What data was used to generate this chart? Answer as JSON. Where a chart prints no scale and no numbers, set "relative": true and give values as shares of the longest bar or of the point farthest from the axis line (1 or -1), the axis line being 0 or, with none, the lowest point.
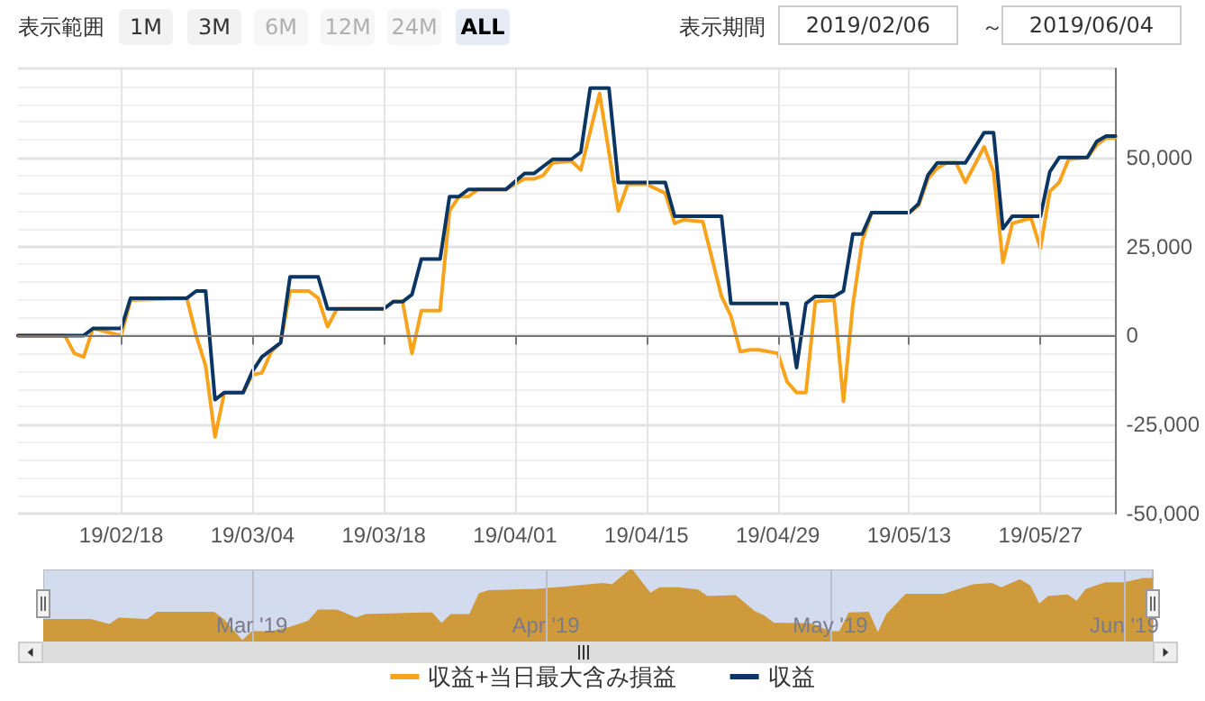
{
  "chart_data": [
    {
      "type": "line",
      "annotations": [
        "表示範囲",
        "1M",
        "3M",
        "6M",
        "12M",
        "24M",
        "ALL",
        "表示期間",
        "2019/02/06",
        "～",
        "2019/06/04"
      ],
      "series": [
        {
          "name": "収益+当日最大含み損益",
          "color": "#f9a21b",
          "x": [
            "2019-02-07",
            "2019-02-12",
            "2019-02-13",
            "2019-02-14",
            "2019-02-15",
            "2019-02-18",
            "2019-02-19",
            "2019-02-25",
            "2019-02-26",
            "2019-02-27",
            "2019-02-28",
            "2019-03-01",
            "2019-03-03",
            "2019-03-04",
            "2019-03-05",
            "2019-03-06",
            "2019-03-07",
            "2019-03-08",
            "2019-03-10",
            "2019-03-11",
            "2019-03-12",
            "2019-03-13",
            "2019-03-18",
            "2019-03-19",
            "2019-03-20",
            "2019-03-21",
            "2019-03-22",
            "2019-03-24",
            "2019-03-25",
            "2019-03-26",
            "2019-03-27",
            "2019-03-28",
            "2019-03-31",
            "2019-04-02",
            "2019-04-03",
            "2019-04-04",
            "2019-04-05",
            "2019-04-07",
            "2019-04-08",
            "2019-04-10",
            "2019-04-12",
            "2019-04-13",
            "2019-04-15",
            "2019-04-17",
            "2019-04-18",
            "2019-04-19",
            "2019-04-21",
            "2019-04-23",
            "2019-04-24",
            "2019-04-25",
            "2019-04-26",
            "2019-04-27",
            "2019-04-29",
            "2019-04-30",
            "2019-05-01",
            "2019-05-02",
            "2019-05-03",
            "2019-05-05",
            "2019-05-06",
            "2019-05-07",
            "2019-05-08",
            "2019-05-09",
            "2019-05-13",
            "2019-05-14",
            "2019-05-15",
            "2019-05-16",
            "2019-05-17",
            "2019-05-18",
            "2019-05-19",
            "2019-05-21",
            "2019-05-22",
            "2019-05-23",
            "2019-05-24",
            "2019-05-26",
            "2019-05-27",
            "2019-05-28",
            "2019-05-29",
            "2019-05-30",
            "2019-06-01",
            "2019-06-02",
            "2019-06-03",
            "2019-06-04"
          ],
          "values": [
            0,
            0,
            -5000,
            -6000,
            2000,
            0,
            10000,
            10500,
            0,
            -8500,
            -28500,
            -16000,
            -16000,
            -11000,
            -10500,
            -4500,
            -2000,
            12500,
            12500,
            10500,
            2500,
            7500,
            7500,
            9500,
            9500,
            -5000,
            7000,
            7000,
            35000,
            39000,
            39000,
            41000,
            41000,
            44000,
            44000,
            45000,
            48500,
            49000,
            46500,
            68000,
            35000,
            42500,
            42500,
            40000,
            31500,
            32500,
            32000,
            11000,
            5500,
            -4500,
            -4000,
            -4000,
            -5000,
            -13000,
            -16000,
            -16000,
            9500,
            10000,
            -18500,
            8500,
            26500,
            34500,
            34500,
            36500,
            44000,
            47000,
            48500,
            48500,
            43000,
            53000,
            46000,
            20500,
            31500,
            33000,
            24500,
            40500,
            43000,
            49500,
            50000,
            53500,
            55500,
            55500
          ]
        },
        {
          "name": "収益",
          "color": "#0b3664",
          "x": [
            "2019-02-07",
            "2019-02-14",
            "2019-02-15",
            "2019-02-18",
            "2019-02-19",
            "2019-02-25",
            "2019-02-26",
            "2019-02-27",
            "2019-02-28",
            "2019-03-01",
            "2019-03-03",
            "2019-03-04",
            "2019-03-05",
            "2019-03-07",
            "2019-03-08",
            "2019-03-11",
            "2019-03-12",
            "2019-03-18",
            "2019-03-19",
            "2019-03-20",
            "2019-03-21",
            "2019-03-22",
            "2019-03-24",
            "2019-03-25",
            "2019-03-26",
            "2019-03-27",
            "2019-03-31",
            "2019-04-02",
            "2019-04-03",
            "2019-04-05",
            "2019-04-07",
            "2019-04-08",
            "2019-04-09",
            "2019-04-11",
            "2019-04-12",
            "2019-04-17",
            "2019-04-18",
            "2019-04-23",
            "2019-04-24",
            "2019-04-30",
            "2019-05-01",
            "2019-05-02",
            "2019-05-03",
            "2019-05-05",
            "2019-05-06",
            "2019-05-07",
            "2019-05-08",
            "2019-05-09",
            "2019-05-13",
            "2019-05-14",
            "2019-05-15",
            "2019-05-16",
            "2019-05-19",
            "2019-05-21",
            "2019-05-22",
            "2019-05-23",
            "2019-05-24",
            "2019-05-27",
            "2019-05-28",
            "2019-05-29",
            "2019-06-01",
            "2019-06-02",
            "2019-06-03",
            "2019-06-04"
          ],
          "values": [
            0,
            0,
            2000,
            2000,
            10500,
            10500,
            12500,
            12500,
            -18000,
            -16000,
            -16000,
            -10000,
            -6000,
            -2000,
            16500,
            16500,
            7500,
            7500,
            9500,
            9500,
            11500,
            21500,
            21500,
            39000,
            39000,
            41000,
            41000,
            45500,
            45500,
            49500,
            49500,
            51500,
            69500,
            69500,
            43000,
            43000,
            33500,
            33500,
            9000,
            9000,
            -9000,
            9000,
            11000,
            11000,
            12500,
            28500,
            28500,
            34500,
            34500,
            37000,
            45000,
            48500,
            48500,
            57000,
            57000,
            30000,
            33500,
            33500,
            46000,
            50000,
            50000,
            54500,
            56000,
            56000
          ]
        }
      ],
      "xlim": [
        "2019-02-07",
        "2019-06-04"
      ],
      "xticks": [
        {
          "value": "2019-02-18",
          "label": "19/02/18"
        },
        {
          "value": "2019-03-04",
          "label": "19/03/04"
        },
        {
          "value": "2019-03-18",
          "label": "19/03/18"
        },
        {
          "value": "2019-04-01",
          "label": "19/04/01"
        },
        {
          "value": "2019-04-15",
          "label": "19/04/15"
        },
        {
          "value": "2019-04-29",
          "label": "19/04/29"
        },
        {
          "value": "2019-05-13",
          "label": "19/05/13"
        },
        {
          "value": "2019-05-27",
          "label": "19/05/27"
        }
      ],
      "ylim": [
        -50000,
        75000
      ],
      "yticks": [
        {
          "value": -50000,
          "label": "-50,000"
        },
        {
          "value": -25000,
          "label": "-25,000"
        },
        0,
        {
          "value": 25000,
          "label": "25,000"
        },
        {
          "value": 50000,
          "label": "50,000"
        },
        {
          "value": 75000,
          "label": null
        }
      ],
      "grid": true,
      "legend": "bottom",
      "marker": "none",
      "line_style": "solid"
    },
    {
      "type": "area",
      "relative": true,
      "series": [
        {
          "color": "#cf9a3c",
          "x": [
            "2019-02-07",
            "2019-02-12",
            "2019-02-14",
            "2019-02-15",
            "2019-02-18",
            "2019-02-19",
            "2019-02-25",
            "2019-02-26",
            "2019-02-28",
            "2019-03-01",
            "2019-03-03",
            "2019-03-05",
            "2019-03-07",
            "2019-03-08",
            "2019-03-10",
            "2019-03-12",
            "2019-03-13",
            "2019-03-19",
            "2019-03-20",
            "2019-03-21",
            "2019-03-22",
            "2019-03-24",
            "2019-03-25",
            "2019-03-26",
            "2019-03-31",
            "2019-04-03",
            "2019-04-07",
            "2019-04-08",
            "2019-04-10",
            "2019-04-12",
            "2019-04-13",
            "2019-04-15",
            "2019-04-17",
            "2019-04-18",
            "2019-04-21",
            "2019-04-23",
            "2019-04-24",
            "2019-04-25",
            "2019-04-29",
            "2019-05-01",
            "2019-05-02",
            "2019-05-03",
            "2019-05-05",
            "2019-05-06",
            "2019-05-07",
            "2019-05-09",
            "2019-05-13",
            "2019-05-16",
            "2019-05-18",
            "2019-05-19",
            "2019-05-21",
            "2019-05-22",
            "2019-05-23",
            "2019-05-24",
            "2019-05-26",
            "2019-05-27",
            "2019-05-28",
            "2019-05-30",
            "2019-06-01",
            "2019-06-03",
            "2019-06-04"
          ],
          "values": [
            0.3,
            0.3,
            0.23,
            0.32,
            0.3,
            0.4,
            0.4,
            0.3,
            0,
            0.13,
            0.13,
            0.19,
            0.28,
            0.43,
            0.43,
            0.32,
            0.37,
            0.39,
            0.39,
            0.24,
            0.37,
            0.37,
            0.66,
            0.7,
            0.72,
            0.75,
            0.8,
            0.78,
            1,
            0.66,
            0.74,
            0.74,
            0.71,
            0.62,
            0.63,
            0.41,
            0.35,
            0.25,
            0.24,
            0.13,
            0.13,
            0.39,
            0.4,
            0.1,
            0.38,
            0.65,
            0.65,
            0.78,
            0.8,
            0.74,
            0.85,
            0.77,
            0.51,
            0.62,
            0.64,
            0.55,
            0.72,
            0.81,
            0.81,
            0.87,
            0.87
          ]
        }
      ],
      "xlim": [
        "2019-02-07",
        "2019-06-04"
      ],
      "xticks": [
        {
          "value": "2019-03-01",
          "label": "Mar '19"
        },
        {
          "value": "2019-04-01",
          "label": "Apr '19"
        },
        {
          "value": "2019-05-01",
          "label": "May '19"
        },
        {
          "value": "2019-06-01",
          "label": "Jun '19"
        }
      ],
      "grid": "x",
      "marker": "none"
    }
  ]
}
